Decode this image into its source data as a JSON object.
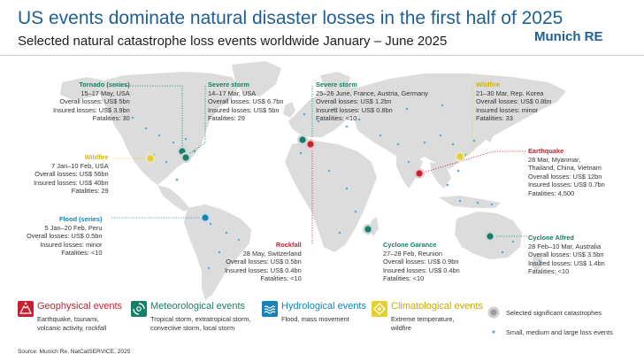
{
  "header": {
    "title": "US events dominate natural disaster losses in the first half of 2025",
    "subtitle": "Selected natural catastrophe loss events worldwide January – June 2025",
    "logo": "Munich RE"
  },
  "colors": {
    "geophysical": "#c8202f",
    "meteorological": "#138067",
    "hydrological": "#1783b6",
    "climatological": "#e6cf2e",
    "land": "#dcdcdc",
    "small_events": "#5ab0c7"
  },
  "events": {
    "tornado": {
      "title": "Tornado (series)",
      "lines": [
        "15–17 May, USA",
        "Overall losses: US$ 5bn",
        "Insured losses: US$ 3.9bn",
        "Fatalities: 30"
      ]
    },
    "severe_storm_us": {
      "title": "Severe storm",
      "lines": [
        "14–17 Mar, USA",
        "Overall losses: US$ 6.7bn",
        "Insured losses: US$ 5bn",
        "Fatalities: 29"
      ]
    },
    "severe_storm_eu": {
      "title": "Severe storm",
      "lines": [
        "25–26 June, France, Austria, Germany",
        "Overall losses: US$ 1.2bn",
        "Insured losses: US$ 0.8bn",
        "Fatalities: <10"
      ]
    },
    "wildfire_korea": {
      "title": "Wildfire",
      "lines": [
        "21–30 Mar, Rep. Korea",
        "Overall losses: US$ 0.8bn",
        "Insured losses: minor",
        "Fatalities: 33"
      ]
    },
    "wildfire_us": {
      "title": "Wildfire",
      "lines": [
        "7 Jan–10 Feb, USA",
        "Overall losses: US$ 56bn",
        "Insured losses: US$ 40bn",
        "Fatalities: 29"
      ]
    },
    "earthquake": {
      "title": "Earthquake",
      "lines": [
        "28 Mar, Myanmar,",
        "Thailand, China, Vietnam",
        "Overall losses: US$ 12bn",
        "Insured losses: US$ 0.7bn",
        "Fatalities: 4,500"
      ]
    },
    "flood": {
      "title": "Flood (series)",
      "lines": [
        "5 Jan–20 Feb, Peru",
        "Overall losses: US$ 0.5bn",
        "Insured losses: minor",
        "Fatalities: <10"
      ]
    },
    "rockfall": {
      "title": "Rockfall",
      "lines": [
        "28 May, Switzerland",
        "Overall losses: US$ 0.5bn",
        "Insured losses: US$ 0.4bn",
        "Fatalities: <10"
      ]
    },
    "cyclone_garance": {
      "title": "Cyclone Garance",
      "lines": [
        "27–28 Feb, Reunion",
        "Overall losses: US$ 0.9bn",
        "Insured losses: US$ 0.4bn",
        "Fatalities: <10"
      ]
    },
    "cyclone_alfred": {
      "title": "Cyclone Alfred",
      "lines": [
        "28 Feb–10 Mar, Australia",
        "Overall losses: US$ 3.5bn",
        "Insured losses: US$ 1.4bn",
        "Fatalities: <10"
      ]
    }
  },
  "legend": {
    "geophysical": {
      "name": "Geophysical events",
      "desc": [
        "Earthquake, tsunami,",
        "volcanic activity, rockfall"
      ],
      "icon": "volcano-icon"
    },
    "meteorological": {
      "name": "Meteorological events",
      "desc": [
        "Tropical storm, extratropical storm,",
        "convective storm, local storm"
      ],
      "icon": "cyclone-icon"
    },
    "hydrological": {
      "name": "Hydrological events",
      "desc": [
        "Flood, mass movement"
      ],
      "icon": "wave-icon"
    },
    "climatological": {
      "name": "Climatological events",
      "desc": [
        "Extreme temperature,",
        "wildfire"
      ],
      "icon": "sun-icon"
    },
    "significant": "Selected significant catastrophes",
    "small": "Small, medium and large loss events"
  },
  "source": "Source: Munich Re, NatCatSERVICE, 2025"
}
